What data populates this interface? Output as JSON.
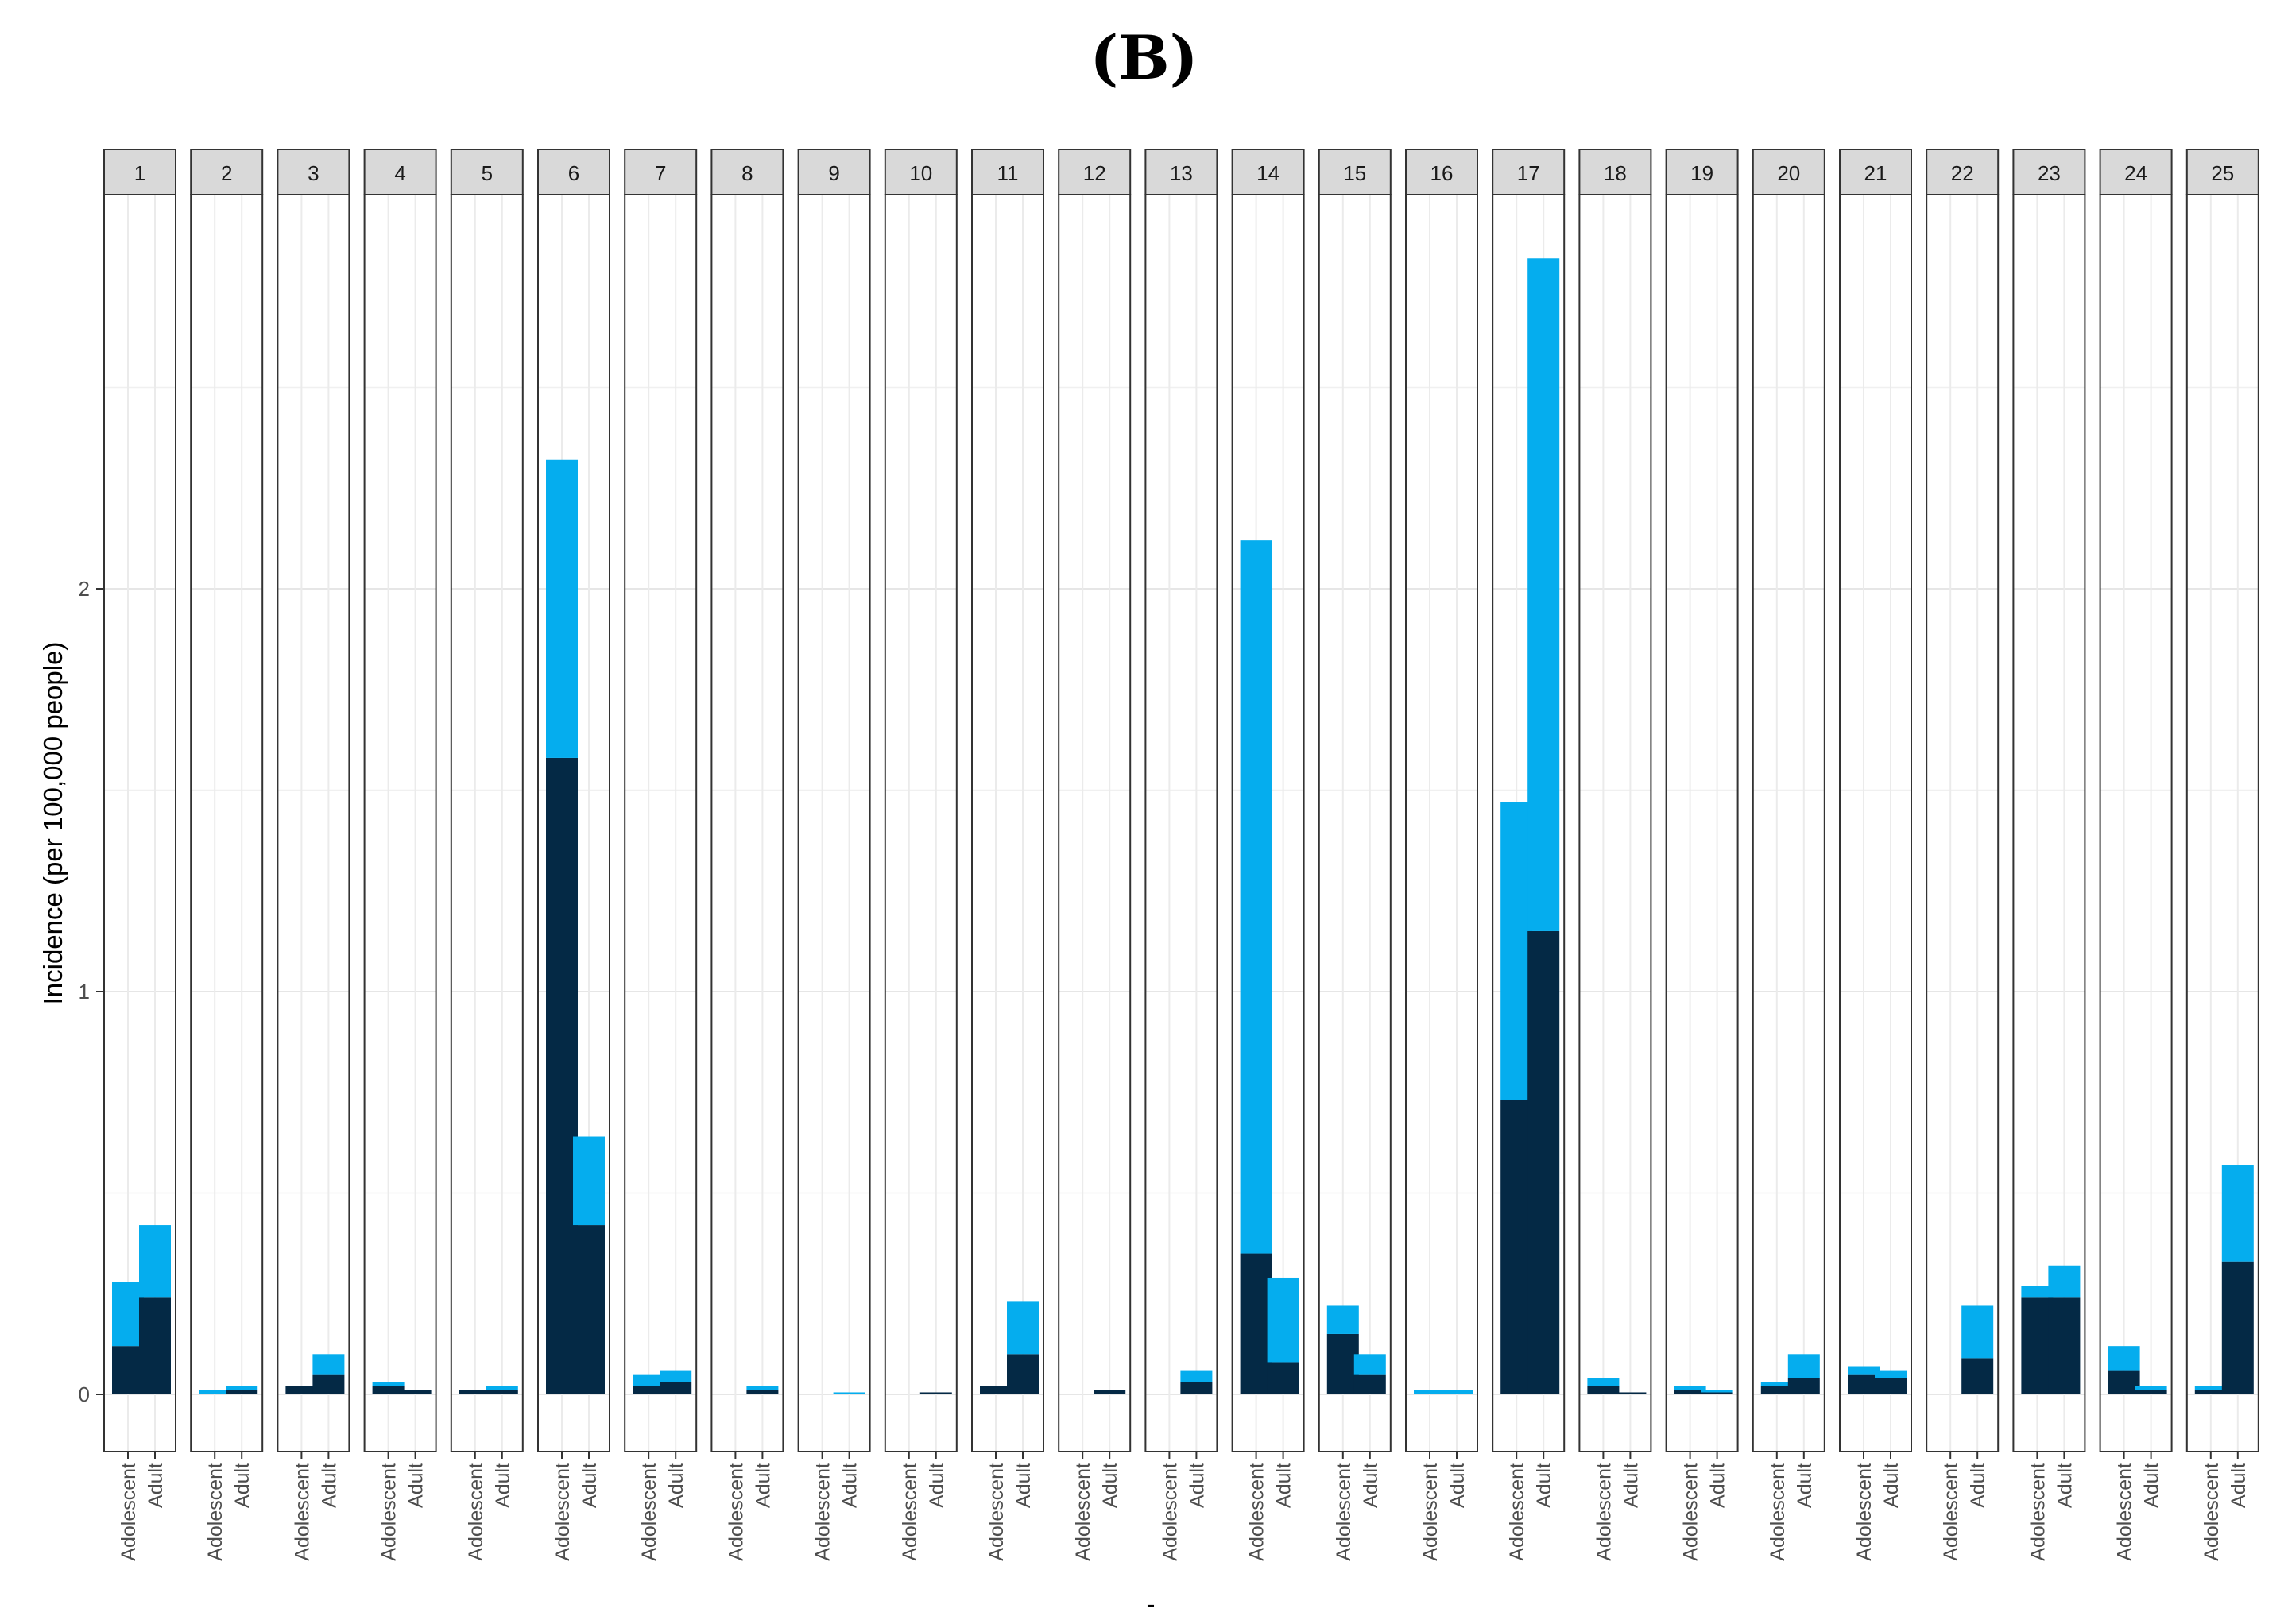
{
  "chart_data": {
    "type": "bar",
    "title": "(B)",
    "ylabel": "Incidence (per 100,000 people)",
    "xlabel": "-",
    "ylim": [
      -0.14,
      2.95
    ],
    "yticks": [
      0,
      1,
      2
    ],
    "grid": true,
    "stacked": true,
    "categories": [
      "Adolescent",
      "Adult"
    ],
    "colors": {
      "bottom": "#042945",
      "top": "#05adee"
    },
    "panels": [
      {
        "label": "1",
        "bottom": [
          0.12,
          0.24
        ],
        "top": [
          0.16,
          0.18
        ]
      },
      {
        "label": "2",
        "bottom": [
          0.0,
          0.01
        ],
        "top": [
          0.01,
          0.01
        ]
      },
      {
        "label": "3",
        "bottom": [
          0.02,
          0.05
        ],
        "top": [
          0.0,
          0.05
        ]
      },
      {
        "label": "4",
        "bottom": [
          0.02,
          0.01
        ],
        "top": [
          0.01,
          0.0
        ]
      },
      {
        "label": "5",
        "bottom": [
          0.01,
          0.01
        ],
        "top": [
          0.0,
          0.01
        ]
      },
      {
        "label": "6",
        "bottom": [
          1.58,
          0.42
        ],
        "top": [
          0.74,
          0.22
        ]
      },
      {
        "label": "7",
        "bottom": [
          0.02,
          0.03
        ],
        "top": [
          0.03,
          0.03
        ]
      },
      {
        "label": "8",
        "bottom": [
          0.0,
          0.01
        ],
        "top": [
          0.0,
          0.01
        ]
      },
      {
        "label": "9",
        "bottom": [
          0.0,
          0.0
        ],
        "top": [
          0.0,
          0.005
        ]
      },
      {
        "label": "10",
        "bottom": [
          0.0,
          0.005
        ],
        "top": [
          0.0,
          0.0
        ]
      },
      {
        "label": "11",
        "bottom": [
          0.02,
          0.1
        ],
        "top": [
          0.0,
          0.13
        ]
      },
      {
        "label": "12",
        "bottom": [
          0.0,
          0.01
        ],
        "top": [
          0.0,
          0.0
        ]
      },
      {
        "label": "13",
        "bottom": [
          0.0,
          0.03
        ],
        "top": [
          0.0,
          0.03
        ]
      },
      {
        "label": "14",
        "bottom": [
          0.35,
          0.08
        ],
        "top": [
          1.77,
          0.21
        ]
      },
      {
        "label": "15",
        "bottom": [
          0.15,
          0.05
        ],
        "top": [
          0.07,
          0.05
        ]
      },
      {
        "label": "16",
        "bottom": [
          0.0,
          0.0
        ],
        "top": [
          0.01,
          0.01
        ]
      },
      {
        "label": "17",
        "bottom": [
          0.73,
          1.15
        ],
        "top": [
          0.74,
          1.67
        ]
      },
      {
        "label": "18",
        "bottom": [
          0.02,
          0.005
        ],
        "top": [
          0.02,
          0.0
        ]
      },
      {
        "label": "19",
        "bottom": [
          0.01,
          0.005
        ],
        "top": [
          0.01,
          0.005
        ]
      },
      {
        "label": "20",
        "bottom": [
          0.02,
          0.04
        ],
        "top": [
          0.01,
          0.06
        ]
      },
      {
        "label": "21",
        "bottom": [
          0.05,
          0.04
        ],
        "top": [
          0.02,
          0.02
        ]
      },
      {
        "label": "22",
        "bottom": [
          0.0,
          0.09
        ],
        "top": [
          0.0,
          0.13
        ]
      },
      {
        "label": "23",
        "bottom": [
          0.24,
          0.24
        ],
        "top": [
          0.03,
          0.08
        ]
      },
      {
        "label": "24",
        "bottom": [
          0.06,
          0.01
        ],
        "top": [
          0.06,
          0.01
        ]
      },
      {
        "label": "25",
        "bottom": [
          0.01,
          0.33
        ],
        "top": [
          0.01,
          0.24
        ]
      }
    ]
  }
}
